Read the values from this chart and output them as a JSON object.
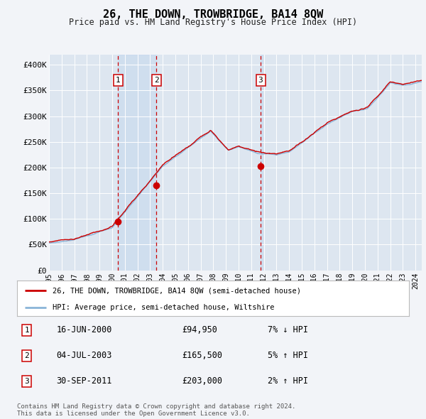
{
  "title": "26, THE DOWN, TROWBRIDGE, BA14 8QW",
  "subtitle": "Price paid vs. HM Land Registry's House Price Index (HPI)",
  "hpi_label": "HPI: Average price, semi-detached house, Wiltshire",
  "price_label": "26, THE DOWN, TROWBRIDGE, BA14 8QW (semi-detached house)",
  "background_color": "#f2f4f8",
  "plot_bg_color": "#dde6f0",
  "grid_color": "#ffffff",
  "hpi_color": "#8ab4d8",
  "price_color": "#cc0000",
  "ylim": [
    0,
    420000
  ],
  "yticks": [
    0,
    50000,
    100000,
    150000,
    200000,
    250000,
    300000,
    350000,
    400000
  ],
  "ytick_labels": [
    "£0",
    "£50K",
    "£100K",
    "£150K",
    "£200K",
    "£250K",
    "£300K",
    "£350K",
    "£400K"
  ],
  "sale_points": [
    {
      "date": 2000.46,
      "price": 94950,
      "label": "1"
    },
    {
      "date": 2003.51,
      "price": 165500,
      "label": "2"
    },
    {
      "date": 2011.75,
      "price": 203000,
      "label": "3"
    }
  ],
  "table_rows": [
    {
      "num": "1",
      "date": "16-JUN-2000",
      "price": "£94,950",
      "hpi": "7% ↓ HPI"
    },
    {
      "num": "2",
      "date": "04-JUL-2003",
      "price": "£165,500",
      "hpi": "5% ↑ HPI"
    },
    {
      "num": "3",
      "date": "30-SEP-2011",
      "price": "£203,000",
      "hpi": "2% ↑ HPI"
    }
  ],
  "footer": "Contains HM Land Registry data © Crown copyright and database right 2024.\nThis data is licensed under the Open Government Licence v3.0.",
  "xlim_start": 1995,
  "xlim_end": 2024.5,
  "shade_region": [
    2000.46,
    2003.51
  ],
  "shade_region2": [
    2011.75,
    2011.92
  ]
}
